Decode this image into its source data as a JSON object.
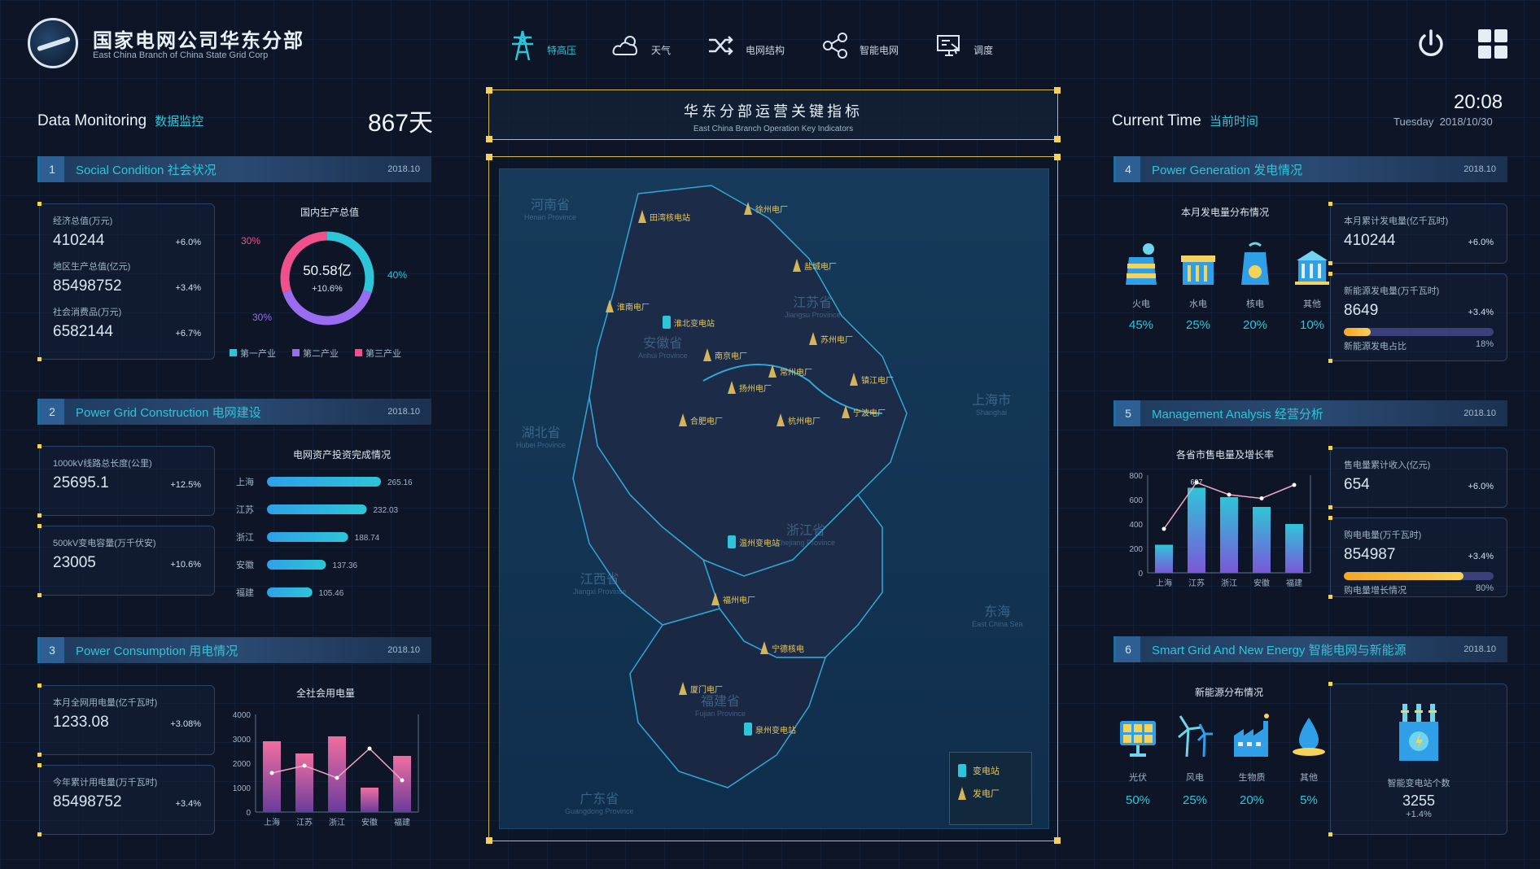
{
  "header": {
    "brand_cn": "国家电网公司华东分部",
    "brand_en": "East China Branch of China State Grid Corp",
    "nav": [
      {
        "label": "特高压",
        "icon": "transmission-tower-icon",
        "active": true
      },
      {
        "label": "天气",
        "icon": "weather-icon",
        "active": false
      },
      {
        "label": "电网结构",
        "icon": "shuffle-icon",
        "active": false
      },
      {
        "label": "智能电网",
        "icon": "share-icon",
        "active": false
      },
      {
        "label": "调度",
        "icon": "monitor-icon",
        "active": false
      }
    ]
  },
  "left": {
    "title": "Data Monitoring",
    "title_cn": "数据监控",
    "days": "867天",
    "social": {
      "num": "1",
      "title": "Social Condition  社会状况",
      "date": "2018.10",
      "stats": [
        {
          "label": "经济总值(万元)",
          "value": "410244",
          "change": "+6.0%"
        },
        {
          "label": "地区生产总值(亿元)",
          "value": "85498752",
          "change": "+3.4%"
        },
        {
          "label": "社会消费品(万元)",
          "value": "6582144",
          "change": "+6.7%"
        }
      ],
      "donut_title": "国内生产总值",
      "donut_center": "50.58亿",
      "donut_sub": "+10.6%",
      "donut_labels": [
        "30%",
        "40%",
        "30%"
      ],
      "legend": [
        "第一产业",
        "第二产业",
        "第三产业"
      ]
    },
    "grid": {
      "num": "2",
      "title": "Power Grid Construction  电网建设",
      "date": "2018.10",
      "stats": [
        {
          "label": "1000kV线路总长度(公里)",
          "value": "25695.1",
          "change": "+12.5%"
        },
        {
          "label": "500kV变电容量(万千伏安)",
          "value": "23005",
          "change": "+10.6%"
        }
      ],
      "chart_title": "电网资产投资完成情况"
    },
    "consumption": {
      "num": "3",
      "title": "Power Consumption  用电情况",
      "date": "2018.10",
      "stats": [
        {
          "label": "本月全网用电量(亿千瓦时)",
          "value": "1233.08",
          "change": "+3.08%"
        },
        {
          "label": "今年累计用电量(万千瓦时)",
          "value": "85498752",
          "change": "+3.4%"
        }
      ],
      "chart_title": "全社会用电量",
      "axis_labels_left": [
        "4000",
        "3000",
        "2000",
        "1000",
        "0"
      ]
    }
  },
  "center": {
    "kpi_cn": "华东分部运营关键指标",
    "kpi_en": "East China Branch Operation Key Indicators",
    "legend": [
      "变电站",
      "发电厂"
    ],
    "regions": [
      {
        "cn": "河南省",
        "en": "Henan Province"
      },
      {
        "cn": "江苏省",
        "en": "Jiangsu Province"
      },
      {
        "cn": "安徽省",
        "en": "Anhui Province"
      },
      {
        "cn": "湖北省",
        "en": "Hubei Province"
      },
      {
        "cn": "上海市",
        "en": "Shanghai"
      },
      {
        "cn": "浙江省",
        "en": "Zhejiang Province"
      },
      {
        "cn": "江西省",
        "en": "Jiangxi Province"
      },
      {
        "cn": "福建省",
        "en": "Fujian Province"
      },
      {
        "cn": "东海",
        "en": "East China Sea"
      },
      {
        "cn": "广东省",
        "en": "Guangdong Province"
      }
    ],
    "markers": [
      "田湾核电站",
      "徐州电厂",
      "盐城电厂",
      "淮南电厂",
      "淮北变电站",
      "苏州电厂",
      "南京电厂",
      "常州电厂",
      "镇江电厂",
      "扬州电厂",
      "合肥电厂",
      "杭州电厂",
      "宁波电厂",
      "温州变电站",
      "福州电厂",
      "厦门电厂",
      "宁德核电",
      "泉州变电站"
    ]
  },
  "right": {
    "title": "Current Time",
    "title_cn": "当前时间",
    "time": "20:08",
    "weekday": "Tuesday",
    "date": "2018/10/30",
    "generation": {
      "num": "4",
      "title": "Power Generation  发电情况",
      "date": "2018.10",
      "chart_title": "本月发电量分布情况",
      "types": [
        {
          "label": "火电",
          "pct": "45%",
          "icon": "thermal-plant-icon"
        },
        {
          "label": "水电",
          "pct": "25%",
          "icon": "hydro-plant-icon"
        },
        {
          "label": "核电",
          "pct": "20%",
          "icon": "nuclear-plant-icon"
        },
        {
          "label": "其他",
          "pct": "10%",
          "icon": "other-plant-icon"
        }
      ],
      "stats": [
        {
          "label": "本月累计发电量(亿千瓦时)",
          "value": "410244",
          "change": "+6.0%"
        },
        {
          "label": "新能源发电量(万千瓦时)",
          "value": "8649",
          "change": "+3.4%",
          "bar_label": "新能源发电占比",
          "bar_pct": "18%",
          "bar_fraction": 0.18
        }
      ]
    },
    "management": {
      "num": "5",
      "title": "Management Analysis  经营分析",
      "date": "2018.10",
      "chart_title": "各省市售电量及增长率",
      "axis_left": [
        "800",
        "600",
        "400",
        "200",
        "0"
      ],
      "stats": [
        {
          "label": "售电量累计收入(亿元)",
          "value": "654",
          "change": "+6.0%"
        },
        {
          "label": "购电电量(万千瓦时)",
          "value": "854987",
          "change": "+3.4%",
          "bar_label": "购电量增长情况",
          "bar_pct": "80%",
          "bar_fraction": 0.8
        }
      ]
    },
    "smart": {
      "num": "6",
      "title": "Smart Grid And New Energy  智能电网与新能源",
      "date": "2018.10",
      "chart_title": "新能源分布情况",
      "types": [
        {
          "label": "光伏",
          "pct": "50%",
          "icon": "solar-panel-icon"
        },
        {
          "label": "风电",
          "pct": "25%",
          "icon": "wind-turbine-icon"
        },
        {
          "label": "生物质",
          "pct": "20%",
          "icon": "factory-icon"
        },
        {
          "label": "其他",
          "pct": "5%",
          "icon": "water-drop-icon"
        }
      ],
      "station_label": "智能变电站个数",
      "station_value": "3255",
      "station_change": "+1.4%"
    }
  },
  "chart_data": [
    {
      "type": "pie",
      "title": "国内生产总值",
      "categories": [
        "第一产业",
        "第二产业",
        "第三产业"
      ],
      "values": [
        30,
        40,
        30
      ],
      "colors": [
        "#2ec5d8",
        "#9a6cf0",
        "#f0508c"
      ]
    },
    {
      "type": "bar",
      "title": "电网资产投资完成情况",
      "categories": [
        "上海",
        "江苏",
        "浙江",
        "安徽",
        "福建"
      ],
      "values": [
        265.16,
        232.03,
        188.74,
        137.36,
        105.46
      ],
      "value_labels": [
        "265.16",
        "232.03",
        "188.74",
        "137.36",
        "105.46"
      ],
      "colors": [
        "#2fa0e8",
        "#2ec5d8"
      ]
    },
    {
      "type": "bar",
      "title": "全社会用电量",
      "categories": [
        "上海",
        "江苏",
        "浙江",
        "安徽",
        "福建"
      ],
      "values": [
        2900,
        2400,
        3100,
        1000,
        2300
      ],
      "line": [
        1600,
        1900,
        1400,
        2600,
        1300
      ],
      "ylim": [
        0,
        4000
      ],
      "colors": [
        "#f06ea0",
        "#6a3c9c"
      ]
    },
    {
      "type": "bar",
      "title": "各省市售电量及增长率",
      "categories": [
        "上海",
        "江苏",
        "浙江",
        "安徽",
        "福建"
      ],
      "values": [
        230,
        697,
        620,
        540,
        400
      ],
      "line": [
        360,
        740,
        640,
        610,
        720
      ],
      "value_labels": [
        "",
        "697",
        "",
        "",
        ""
      ],
      "ylim": [
        0,
        800
      ],
      "colors": [
        "#2ec5d8",
        "#7a58d8"
      ]
    }
  ]
}
